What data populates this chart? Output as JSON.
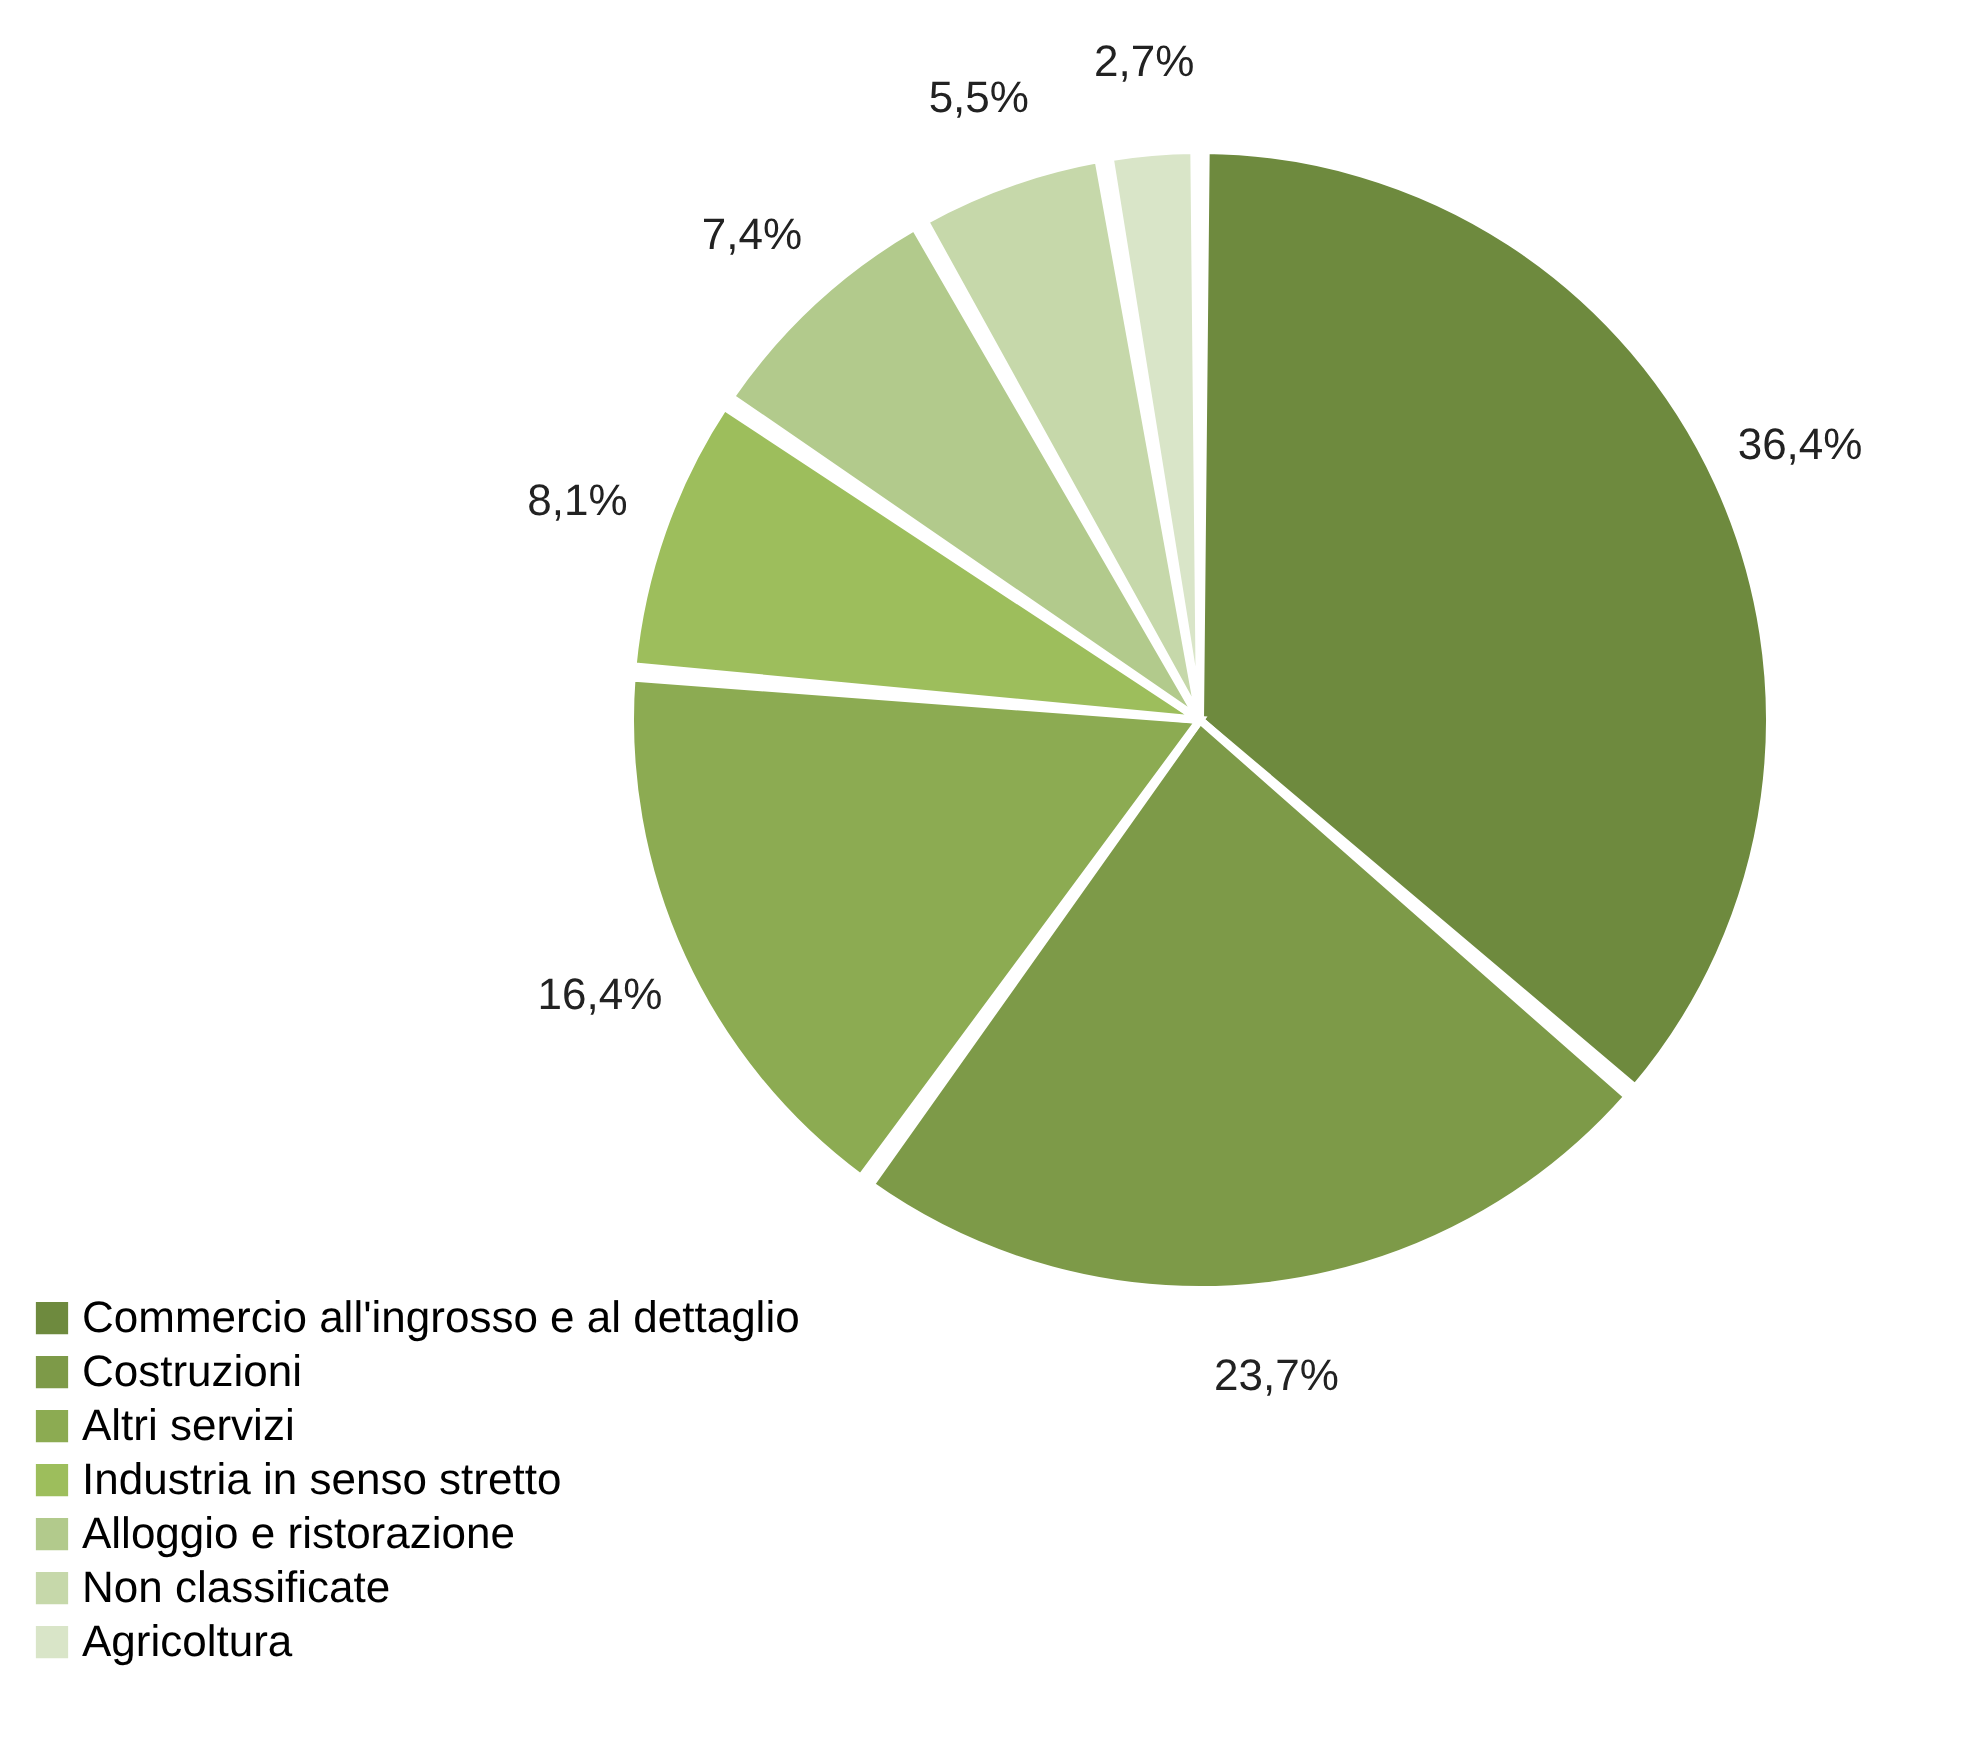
{
  "chart_data": {
    "type": "pie",
    "categories": [
      "Commercio all'ingrosso e al dettaglio",
      "Costruzioni",
      "Altri servizi",
      "Industria in senso stretto",
      "Alloggio e ristorazione",
      "Non classificate",
      "Agricoltura"
    ],
    "values": [
      36.4,
      23.7,
      16.4,
      8.1,
      7.4,
      5.5,
      2.7
    ],
    "value_labels": [
      "36,4%",
      "23,7%",
      "16,4%",
      "8,1%",
      "7,4%",
      "5,5%",
      "2,7%"
    ],
    "colors": [
      "#6e8a3e",
      "#7d9a48",
      "#8cab52",
      "#9dbe5c",
      "#b2ca8c",
      "#c6d8aa",
      "#d9e5c8"
    ],
    "legend": "bottom left"
  }
}
